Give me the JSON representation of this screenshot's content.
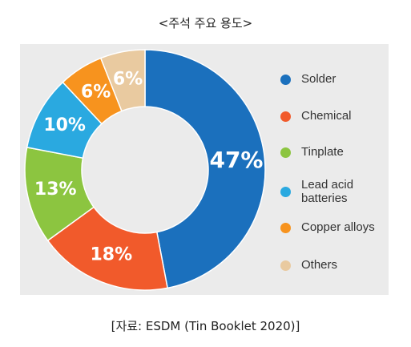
{
  "chart_data": {
    "type": "donut",
    "title": "<주석 주요 용도>",
    "categories": [
      "Solder",
      "Chemical",
      "Tinplate",
      "Lead acid batteries",
      "Copper alloys",
      "Others"
    ],
    "values": [
      47,
      18,
      13,
      10,
      6,
      6
    ],
    "value_labels": [
      "47%",
      "18%",
      "13%",
      "10%",
      "6%",
      "6%"
    ],
    "colors": [
      "#1b70bd",
      "#f15a2b",
      "#8cc540",
      "#2aa9e0",
      "#f7931e",
      "#e9caa0"
    ],
    "source": "[자료: ESDM (Tin Booklet 2020)]"
  }
}
